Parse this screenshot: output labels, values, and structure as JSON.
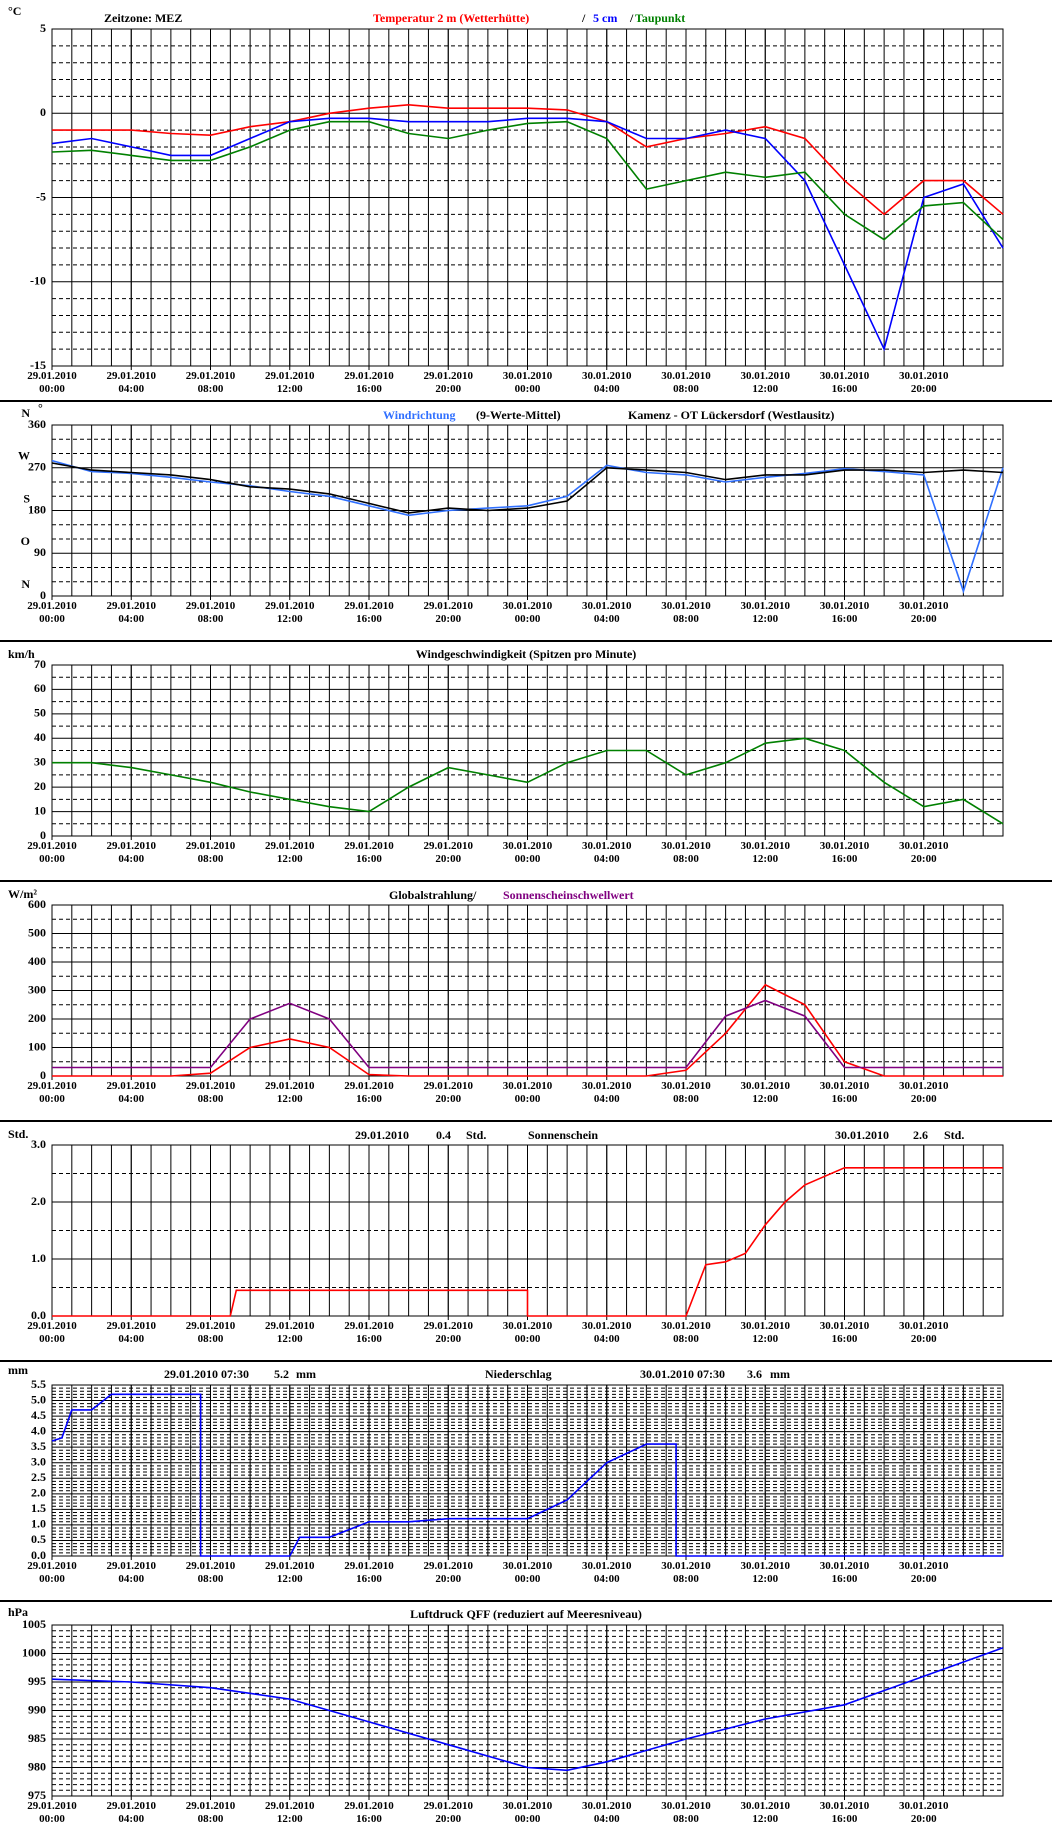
{
  "chart_data": [
    {
      "type": "line",
      "unit": "°C",
      "timezone": "Zeitzone: MEZ",
      "legend_separator": "/",
      "x": [
        0,
        2,
        4,
        6,
        8,
        10,
        12,
        14,
        16,
        18,
        20,
        22,
        24,
        26,
        28,
        30,
        32,
        34,
        36,
        38,
        40,
        42,
        44,
        46,
        48
      ],
      "series": [
        {
          "name": "Temperatur 2 m (Wetterhütte)",
          "color": "#ff0000",
          "values": [
            -1,
            -1,
            -1,
            -1.2,
            -1.3,
            -0.8,
            -0.5,
            0,
            0.3,
            0.5,
            0.3,
            0.3,
            0.3,
            0.2,
            -0.5,
            -2,
            -1.5,
            -1.2,
            -0.8,
            -1.5,
            -4,
            -6,
            -4,
            -4,
            -6
          ]
        },
        {
          "name": "5 cm",
          "color": "#0000ff",
          "values": [
            -1.8,
            -1.5,
            -2,
            -2.5,
            -2.5,
            -1.5,
            -0.5,
            -0.3,
            -0.3,
            -0.5,
            -0.5,
            -0.5,
            -0.3,
            -0.3,
            -0.5,
            -1.5,
            -1.5,
            -1,
            -1.5,
            -4,
            -9,
            -14,
            -5,
            -4.2,
            -8
          ]
        },
        {
          "name": "Taupunkt",
          "color": "#008000",
          "values": [
            -2.3,
            -2.2,
            -2.5,
            -2.8,
            -2.8,
            -2,
            -1,
            -0.5,
            -0.5,
            -1.2,
            -1.5,
            -1,
            -0.6,
            -0.5,
            -1.5,
            -4.5,
            -4,
            -3.5,
            -3.8,
            -3.5,
            -6,
            -7.5,
            -5.5,
            -5.3,
            -7.5
          ]
        }
      ],
      "xlim": [
        0,
        48
      ],
      "xticks": [
        {
          "value": 0,
          "label": "29.01.2010 00:00"
        },
        {
          "value": 4,
          "label": "29.01.2010 04:00"
        },
        {
          "value": 8,
          "label": "29.01.2010 08:00"
        },
        {
          "value": 12,
          "label": "29.01.2010 12:00"
        },
        {
          "value": 16,
          "label": "29.01.2010 16:00"
        },
        {
          "value": 20,
          "label": "29.01.2010 20:00"
        },
        {
          "value": 24,
          "label": "30.01.2010 00:00"
        },
        {
          "value": 28,
          "label": "30.01.2010 04:00"
        },
        {
          "value": 32,
          "label": "30.01.2010 08:00"
        },
        {
          "value": 36,
          "label": "30.01.2010 12:00"
        },
        {
          "value": 40,
          "label": "30.01.2010 16:00"
        },
        {
          "value": 44,
          "label": "30.01.2010 20:00"
        }
      ],
      "ylim": [
        -15,
        5
      ],
      "yticks": [
        -15,
        -10,
        -5,
        0,
        5
      ],
      "grid": true
    },
    {
      "type": "line",
      "unit": "°",
      "station": "Kamenz - OT Lückersdorf (Westlausitz)",
      "compass_labels": [
        {
          "value": 0,
          "label": "N"
        },
        {
          "value": 90,
          "label": "O"
        },
        {
          "value": 180,
          "label": "S"
        },
        {
          "value": 270,
          "label": "W"
        },
        {
          "value": 360,
          "label": "N"
        }
      ],
      "x": [
        0,
        2,
        4,
        6,
        8,
        10,
        12,
        14,
        16,
        18,
        20,
        22,
        24,
        26,
        28,
        30,
        32,
        34,
        36,
        38,
        40,
        42,
        44,
        46,
        48
      ],
      "series": [
        {
          "name": "Windrichtung",
          "color": "#3070ff",
          "values": [
            285,
            262,
            258,
            250,
            240,
            232,
            220,
            210,
            190,
            170,
            180,
            185,
            190,
            210,
            275,
            260,
            255,
            240,
            250,
            258,
            268,
            262,
            255,
            10,
            270
          ]
        },
        {
          "name": "(9-Werte-Mittel)",
          "color": "#000000",
          "values": [
            280,
            265,
            260,
            255,
            245,
            230,
            225,
            215,
            195,
            175,
            185,
            180,
            185,
            200,
            270,
            265,
            260,
            245,
            255,
            255,
            265,
            265,
            260,
            265,
            260
          ]
        }
      ],
      "xlim": [
        0,
        48
      ],
      "xticks": [
        {
          "value": 0,
          "label": "29.01.2010 00:00"
        },
        {
          "value": 4,
          "label": "29.01.2010 04:00"
        },
        {
          "value": 8,
          "label": "29.01.2010 08:00"
        },
        {
          "value": 12,
          "label": "29.01.2010 12:00"
        },
        {
          "value": 16,
          "label": "29.01.2010 16:00"
        },
        {
          "value": 20,
          "label": "29.01.2010 20:00"
        },
        {
          "value": 24,
          "label": "30.01.2010 00:00"
        },
        {
          "value": 28,
          "label": "30.01.2010 04:00"
        },
        {
          "value": 32,
          "label": "30.01.2010 08:00"
        },
        {
          "value": 36,
          "label": "30.01.2010 12:00"
        },
        {
          "value": 40,
          "label": "30.01.2010 16:00"
        },
        {
          "value": 44,
          "label": "30.01.2010 20:00"
        }
      ],
      "ylim": [
        0,
        360
      ],
      "yticks": [
        0,
        90,
        180,
        270,
        360
      ],
      "grid": true
    },
    {
      "type": "line",
      "unit": "km/h",
      "title": "Windgeschwindigkeit (Spitzen pro Minute)",
      "color": "#008000",
      "x": [
        0,
        2,
        4,
        6,
        8,
        10,
        12,
        14,
        16,
        18,
        20,
        22,
        24,
        26,
        28,
        30,
        32,
        34,
        36,
        38,
        40,
        42,
        44,
        46,
        48
      ],
      "values": [
        30,
        30,
        28,
        25,
        22,
        18,
        15,
        12,
        10,
        20,
        28,
        25,
        22,
        30,
        35,
        35,
        25,
        30,
        38,
        40,
        35,
        22,
        12,
        15,
        5
      ],
      "xlim": [
        0,
        48
      ],
      "xticks": [
        {
          "value": 0,
          "label": "29.01.2010 00:00"
        },
        {
          "value": 4,
          "label": "29.01.2010 04:00"
        },
        {
          "value": 8,
          "label": "29.01.2010 08:00"
        },
        {
          "value": 12,
          "label": "29.01.2010 12:00"
        },
        {
          "value": 16,
          "label": "29.01.2010 16:00"
        },
        {
          "value": 20,
          "label": "29.01.2010 20:00"
        },
        {
          "value": 24,
          "label": "30.01.2010 00:00"
        },
        {
          "value": 28,
          "label": "30.01.2010 04:00"
        },
        {
          "value": 32,
          "label": "30.01.2010 08:00"
        },
        {
          "value": 36,
          "label": "30.01.2010 12:00"
        },
        {
          "value": 40,
          "label": "30.01.2010 16:00"
        },
        {
          "value": 44,
          "label": "30.01.2010 20:00"
        }
      ],
      "ylim": [
        0,
        70
      ],
      "yticks": [
        0,
        10,
        20,
        30,
        40,
        50,
        60,
        70
      ],
      "grid": true
    },
    {
      "type": "line",
      "unit": "W/m²",
      "x": [
        0,
        2,
        4,
        6,
        8,
        10,
        12,
        14,
        16,
        18,
        20,
        22,
        24,
        26,
        28,
        30,
        32,
        34,
        36,
        38,
        40,
        42,
        44,
        46,
        48
      ],
      "series": [
        {
          "name": "Globalstrahlung/",
          "color": "#ff0000",
          "values": [
            0,
            0,
            0,
            0,
            10,
            100,
            130,
            100,
            5,
            0,
            0,
            0,
            0,
            0,
            0,
            0,
            20,
            150,
            320,
            250,
            50,
            0,
            0,
            0,
            0
          ]
        },
        {
          "name": "Sonnenscheinschwellwert",
          "color": "#800080",
          "values": [
            30,
            30,
            30,
            30,
            30,
            200,
            255,
            200,
            30,
            30,
            30,
            30,
            30,
            30,
            30,
            30,
            30,
            210,
            265,
            210,
            30,
            30,
            30,
            30,
            30
          ]
        }
      ],
      "xlim": [
        0,
        48
      ],
      "xticks": [
        {
          "value": 0,
          "label": "29.01.2010 00:00"
        },
        {
          "value": 4,
          "label": "29.01.2010 04:00"
        },
        {
          "value": 8,
          "label": "29.01.2010 08:00"
        },
        {
          "value": 12,
          "label": "29.01.2010 12:00"
        },
        {
          "value": 16,
          "label": "29.01.2010 16:00"
        },
        {
          "value": 20,
          "label": "29.01.2010 20:00"
        },
        {
          "value": 24,
          "label": "30.01.2010 00:00"
        },
        {
          "value": 28,
          "label": "30.01.2010 04:00"
        },
        {
          "value": 32,
          "label": "30.01.2010 08:00"
        },
        {
          "value": 36,
          "label": "30.01.2010 12:00"
        },
        {
          "value": 40,
          "label": "30.01.2010 16:00"
        },
        {
          "value": 44,
          "label": "30.01.2010 20:00"
        }
      ],
      "ylim": [
        0,
        600
      ],
      "yticks": [
        0,
        100,
        200,
        300,
        400,
        500,
        600
      ],
      "grid": true
    },
    {
      "type": "line",
      "unit": "Std.",
      "title": "Sonnenschein",
      "color": "#ff0000",
      "daily_totals": [
        {
          "date": "29.01.2010",
          "total": 0.4,
          "unit": "Std."
        },
        {
          "date": "30.01.2010",
          "total": 2.6,
          "unit": "Std."
        }
      ],
      "x": [
        0,
        9,
        9.3,
        24,
        24,
        32,
        33,
        34,
        35,
        36,
        37,
        38,
        39,
        40,
        48
      ],
      "values": [
        0,
        0,
        0.45,
        0.45,
        0,
        0,
        0.9,
        0.95,
        1.1,
        1.6,
        2.0,
        2.3,
        2.45,
        2.6,
        2.6
      ],
      "xlim": [
        0,
        48
      ],
      "xticks": [
        {
          "value": 0,
          "label": "29.01.2010 00:00"
        },
        {
          "value": 4,
          "label": "29.01.2010 04:00"
        },
        {
          "value": 8,
          "label": "29.01.2010 08:00"
        },
        {
          "value": 12,
          "label": "29.01.2010 12:00"
        },
        {
          "value": 16,
          "label": "29.01.2010 16:00"
        },
        {
          "value": 20,
          "label": "29.01.2010 20:00"
        },
        {
          "value": 24,
          "label": "30.01.2010 00:00"
        },
        {
          "value": 28,
          "label": "30.01.2010 04:00"
        },
        {
          "value": 32,
          "label": "30.01.2010 08:00"
        },
        {
          "value": 36,
          "label": "30.01.2010 12:00"
        },
        {
          "value": 40,
          "label": "30.01.2010 16:00"
        },
        {
          "value": 44,
          "label": "30.01.2010 20:00"
        }
      ],
      "ylim": [
        0,
        3
      ],
      "yticks": [
        {
          "value": 0,
          "label": "0.0"
        },
        {
          "value": 1,
          "label": "1.0"
        },
        {
          "value": 2,
          "label": "2.0"
        },
        {
          "value": 3,
          "label": "3.0"
        }
      ],
      "grid": true
    },
    {
      "type": "line",
      "unit": "mm",
      "title": "Niederschlag",
      "color": "#0000ff",
      "daily_totals": [
        {
          "date": "29.01.2010 07:30",
          "total": 5.2,
          "unit": "mm"
        },
        {
          "date": "30.01.2010 07:30",
          "total": 3.6,
          "unit": "mm"
        }
      ],
      "x": [
        0,
        0.5,
        1,
        2,
        3,
        4,
        5,
        6,
        7,
        7.5,
        7.5,
        12,
        12.5,
        14,
        16,
        18,
        20,
        22,
        24,
        26,
        28,
        29,
        30,
        31.5,
        31.5,
        48
      ],
      "values": [
        3.7,
        3.8,
        4.7,
        4.7,
        5.2,
        5.2,
        5.2,
        5.2,
        5.2,
        5.2,
        0,
        0,
        0.6,
        0.6,
        1.1,
        1.1,
        1.2,
        1.2,
        1.2,
        1.8,
        3.0,
        3.3,
        3.6,
        3.6,
        0,
        0
      ],
      "xlim": [
        0,
        48
      ],
      "xticks": [
        {
          "value": 0,
          "label": "29.01.2010 00:00"
        },
        {
          "value": 4,
          "label": "29.01.2010 04:00"
        },
        {
          "value": 8,
          "label": "29.01.2010 08:00"
        },
        {
          "value": 12,
          "label": "29.01.2010 12:00"
        },
        {
          "value": 16,
          "label": "29.01.2010 16:00"
        },
        {
          "value": 20,
          "label": "29.01.2010 20:00"
        },
        {
          "value": 24,
          "label": "30.01.2010 00:00"
        },
        {
          "value": 28,
          "label": "30.01.2010 04:00"
        },
        {
          "value": 32,
          "label": "30.01.2010 08:00"
        },
        {
          "value": 36,
          "label": "30.01.2010 12:00"
        },
        {
          "value": 40,
          "label": "30.01.2010 16:00"
        },
        {
          "value": 44,
          "label": "30.01.2010 20:00"
        }
      ],
      "ylim": [
        0,
        5.5
      ],
      "yticks": [
        {
          "value": 0,
          "label": "0.0"
        },
        0.5,
        {
          "value": 1,
          "label": "1.0"
        },
        1.5,
        {
          "value": 2,
          "label": "2.0"
        },
        2.5,
        {
          "value": 3,
          "label": "3.0"
        },
        3.5,
        {
          "value": 4,
          "label": "4.0"
        },
        4.5,
        {
          "value": 5,
          "label": "5.0"
        },
        5.5
      ],
      "grid": true
    },
    {
      "type": "line",
      "unit": "hPa",
      "title": "Luftdruck QFF (reduziert auf Meeresniveau)",
      "color": "#0000ff",
      "x": [
        0,
        4,
        8,
        12,
        16,
        20,
        24,
        26,
        28,
        32,
        36,
        40,
        44,
        48
      ],
      "values": [
        995.5,
        995,
        994,
        992,
        988,
        984,
        980,
        979.5,
        981,
        985,
        988.5,
        991,
        996,
        1001
      ],
      "xlim": [
        0,
        48
      ],
      "xticks": [
        {
          "value": 0,
          "label": "29.01.2010 00:00"
        },
        {
          "value": 4,
          "label": "29.01.2010 04:00"
        },
        {
          "value": 8,
          "label": "29.01.2010 08:00"
        },
        {
          "value": 12,
          "label": "29.01.2010 12:00"
        },
        {
          "value": 16,
          "label": "29.01.2010 16:00"
        },
        {
          "value": 20,
          "label": "29.01.2010 20:00"
        },
        {
          "value": 24,
          "label": "30.01.2010 00:00"
        },
        {
          "value": 28,
          "label": "30.01.2010 04:00"
        },
        {
          "value": 32,
          "label": "30.01.2010 08:00"
        },
        {
          "value": 36,
          "label": "30.01.2010 12:00"
        },
        {
          "value": 40,
          "label": "30.01.2010 16:00"
        },
        {
          "value": 44,
          "label": "30.01.2010 20:00"
        }
      ],
      "ylim": [
        975,
        1005
      ],
      "yticks": [
        975,
        980,
        985,
        990,
        995,
        1000,
        1005
      ],
      "grid": true
    }
  ]
}
